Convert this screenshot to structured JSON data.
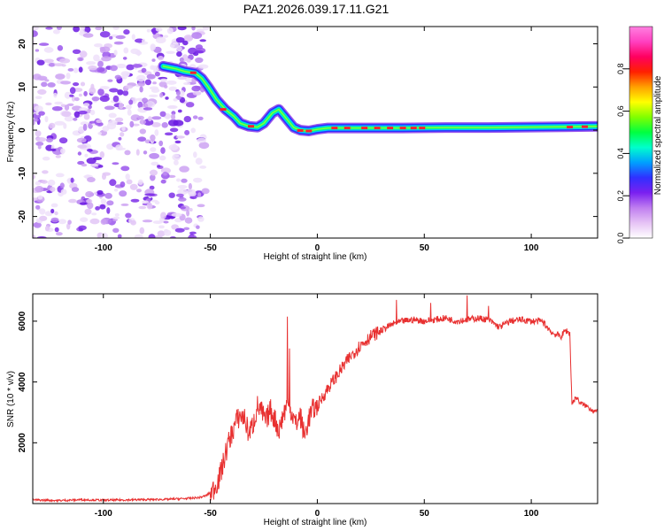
{
  "title": "PAZ1.2026.039.17.11.G21",
  "chart_data": [
    {
      "type": "heatmap",
      "name": "spectrogram",
      "xlabel": "Height of straight line (km)",
      "ylabel": "Frequency (Hz)",
      "xlim": [
        -133,
        131
      ],
      "ylim": [
        -25,
        24
      ],
      "x_ticks": [
        -100,
        -50,
        0,
        50,
        100
      ],
      "y_ticks": [
        20,
        10,
        0,
        -10,
        -20
      ],
      "colorbar": {
        "label": "Normalized spectral amplitude",
        "range": [
          0,
          1
        ],
        "ticks": [
          0.0,
          0.2,
          0.4,
          0.6,
          0.8
        ],
        "tick_labels": [
          "0.0",
          "0.2",
          "0.4",
          "0.6",
          "0.8"
        ],
        "colors": [
          "#ffffff",
          "#e6c3f5",
          "#c07ef0",
          "#7a20f0",
          "#3030ff",
          "#00a0ff",
          "#00ffcc",
          "#00ff40",
          "#80ff00",
          "#ffff00",
          "#ffa000",
          "#ff2000",
          "#ff0060",
          "#ff40c0",
          "#ff80e0"
        ]
      },
      "noise_region": {
        "x_range": [
          -133,
          -52
        ],
        "freq_range": [
          -25,
          24
        ]
      },
      "ridge": [
        {
          "x": -72,
          "f": 14.8
        },
        {
          "x": -66,
          "f": 14.2
        },
        {
          "x": -62,
          "f": 13.6
        },
        {
          "x": -57,
          "f": 13.2
        },
        {
          "x": -54,
          "f": 12.0
        },
        {
          "x": -51,
          "f": 10.0
        },
        {
          "x": -47,
          "f": 7.0
        },
        {
          "x": -43,
          "f": 4.8
        },
        {
          "x": -39,
          "f": 3.2
        },
        {
          "x": -36,
          "f": 1.6
        },
        {
          "x": -32,
          "f": 0.9
        },
        {
          "x": -28,
          "f": 0.7
        },
        {
          "x": -25,
          "f": 1.6
        },
        {
          "x": -21,
          "f": 4.0
        },
        {
          "x": -18,
          "f": 4.8
        },
        {
          "x": -16,
          "f": 3.6
        },
        {
          "x": -13,
          "f": 1.8
        },
        {
          "x": -11,
          "f": 0.6
        },
        {
          "x": -8,
          "f": 0.0
        },
        {
          "x": -4,
          "f": -0.2
        },
        {
          "x": 0,
          "f": 0.2
        },
        {
          "x": 5,
          "f": 0.5
        },
        {
          "x": 20,
          "f": 0.5
        },
        {
          "x": 40,
          "f": 0.5
        },
        {
          "x": 60,
          "f": 0.6
        },
        {
          "x": 80,
          "f": 0.6
        },
        {
          "x": 100,
          "f": 0.7
        },
        {
          "x": 115,
          "f": 0.8
        },
        {
          "x": 131,
          "f": 0.9
        }
      ]
    },
    {
      "type": "line",
      "name": "snr",
      "xlabel": "Height of straight line (km)",
      "ylabel": "SNR (10 * v/v)",
      "xlim": [
        -133,
        131
      ],
      "ylim": [
        0,
        6900
      ],
      "x_ticks": [
        -100,
        -50,
        0,
        50,
        100
      ],
      "y_ticks": [
        2000,
        4000,
        6000
      ],
      "color": "#e83030",
      "series": [
        {
          "x": -133,
          "y": 120
        },
        {
          "x": -120,
          "y": 100
        },
        {
          "x": -110,
          "y": 130
        },
        {
          "x": -100,
          "y": 110
        },
        {
          "x": -90,
          "y": 120
        },
        {
          "x": -80,
          "y": 130
        },
        {
          "x": -70,
          "y": 140
        },
        {
          "x": -60,
          "y": 170
        },
        {
          "x": -55,
          "y": 200
        },
        {
          "x": -52,
          "y": 260
        },
        {
          "x": -49,
          "y": 420
        },
        {
          "x": -46,
          "y": 800
        },
        {
          "x": -44,
          "y": 1300
        },
        {
          "x": -42,
          "y": 1900
        },
        {
          "x": -40,
          "y": 2300
        },
        {
          "x": -38,
          "y": 2700
        },
        {
          "x": -36,
          "y": 2900
        },
        {
          "x": -34,
          "y": 2800
        },
        {
          "x": -32,
          "y": 2300
        },
        {
          "x": -30,
          "y": 2600
        },
        {
          "x": -28,
          "y": 3200
        },
        {
          "x": -26,
          "y": 3000
        },
        {
          "x": -24,
          "y": 2700
        },
        {
          "x": -22,
          "y": 3100
        },
        {
          "x": -20,
          "y": 2800
        },
        {
          "x": -18,
          "y": 2400
        },
        {
          "x": -16,
          "y": 2900
        },
        {
          "x": -14,
          "y": 3300
        },
        {
          "x": -12,
          "y": 3000
        },
        {
          "x": -10,
          "y": 2600
        },
        {
          "x": -8,
          "y": 2900
        },
        {
          "x": -6,
          "y": 2200
        },
        {
          "x": -4,
          "y": 2800
        },
        {
          "x": -2,
          "y": 3100
        },
        {
          "x": 0,
          "y": 3200
        },
        {
          "x": 5,
          "y": 3800
        },
        {
          "x": 10,
          "y": 4300
        },
        {
          "x": 15,
          "y": 4800
        },
        {
          "x": 20,
          "y": 5200
        },
        {
          "x": 25,
          "y": 5500
        },
        {
          "x": 30,
          "y": 5700
        },
        {
          "x": 35,
          "y": 5900
        },
        {
          "x": 40,
          "y": 6000
        },
        {
          "x": 45,
          "y": 6050
        },
        {
          "x": 50,
          "y": 6000
        },
        {
          "x": 55,
          "y": 6050
        },
        {
          "x": 60,
          "y": 6100
        },
        {
          "x": 65,
          "y": 6000
        },
        {
          "x": 70,
          "y": 6050
        },
        {
          "x": 75,
          "y": 6100
        },
        {
          "x": 80,
          "y": 6050
        },
        {
          "x": 85,
          "y": 5800
        },
        {
          "x": 90,
          "y": 6000
        },
        {
          "x": 95,
          "y": 6050
        },
        {
          "x": 100,
          "y": 6000
        },
        {
          "x": 105,
          "y": 6000
        },
        {
          "x": 110,
          "y": 5600
        },
        {
          "x": 114,
          "y": 5500
        },
        {
          "x": 116,
          "y": 5700
        },
        {
          "x": 118,
          "y": 5600
        },
        {
          "x": 119,
          "y": 3300
        },
        {
          "x": 121,
          "y": 3500
        },
        {
          "x": 123,
          "y": 3300
        },
        {
          "x": 126,
          "y": 3200
        },
        {
          "x": 128,
          "y": 3100
        },
        {
          "x": 131,
          "y": 3000
        }
      ],
      "spikes": [
        {
          "x": -14,
          "y": 6150
        },
        {
          "x": -13,
          "y": 5100
        },
        {
          "x": 37,
          "y": 6700
        },
        {
          "x": 53,
          "y": 6600
        },
        {
          "x": 70,
          "y": 6850
        },
        {
          "x": 80,
          "y": 6500
        }
      ]
    }
  ]
}
